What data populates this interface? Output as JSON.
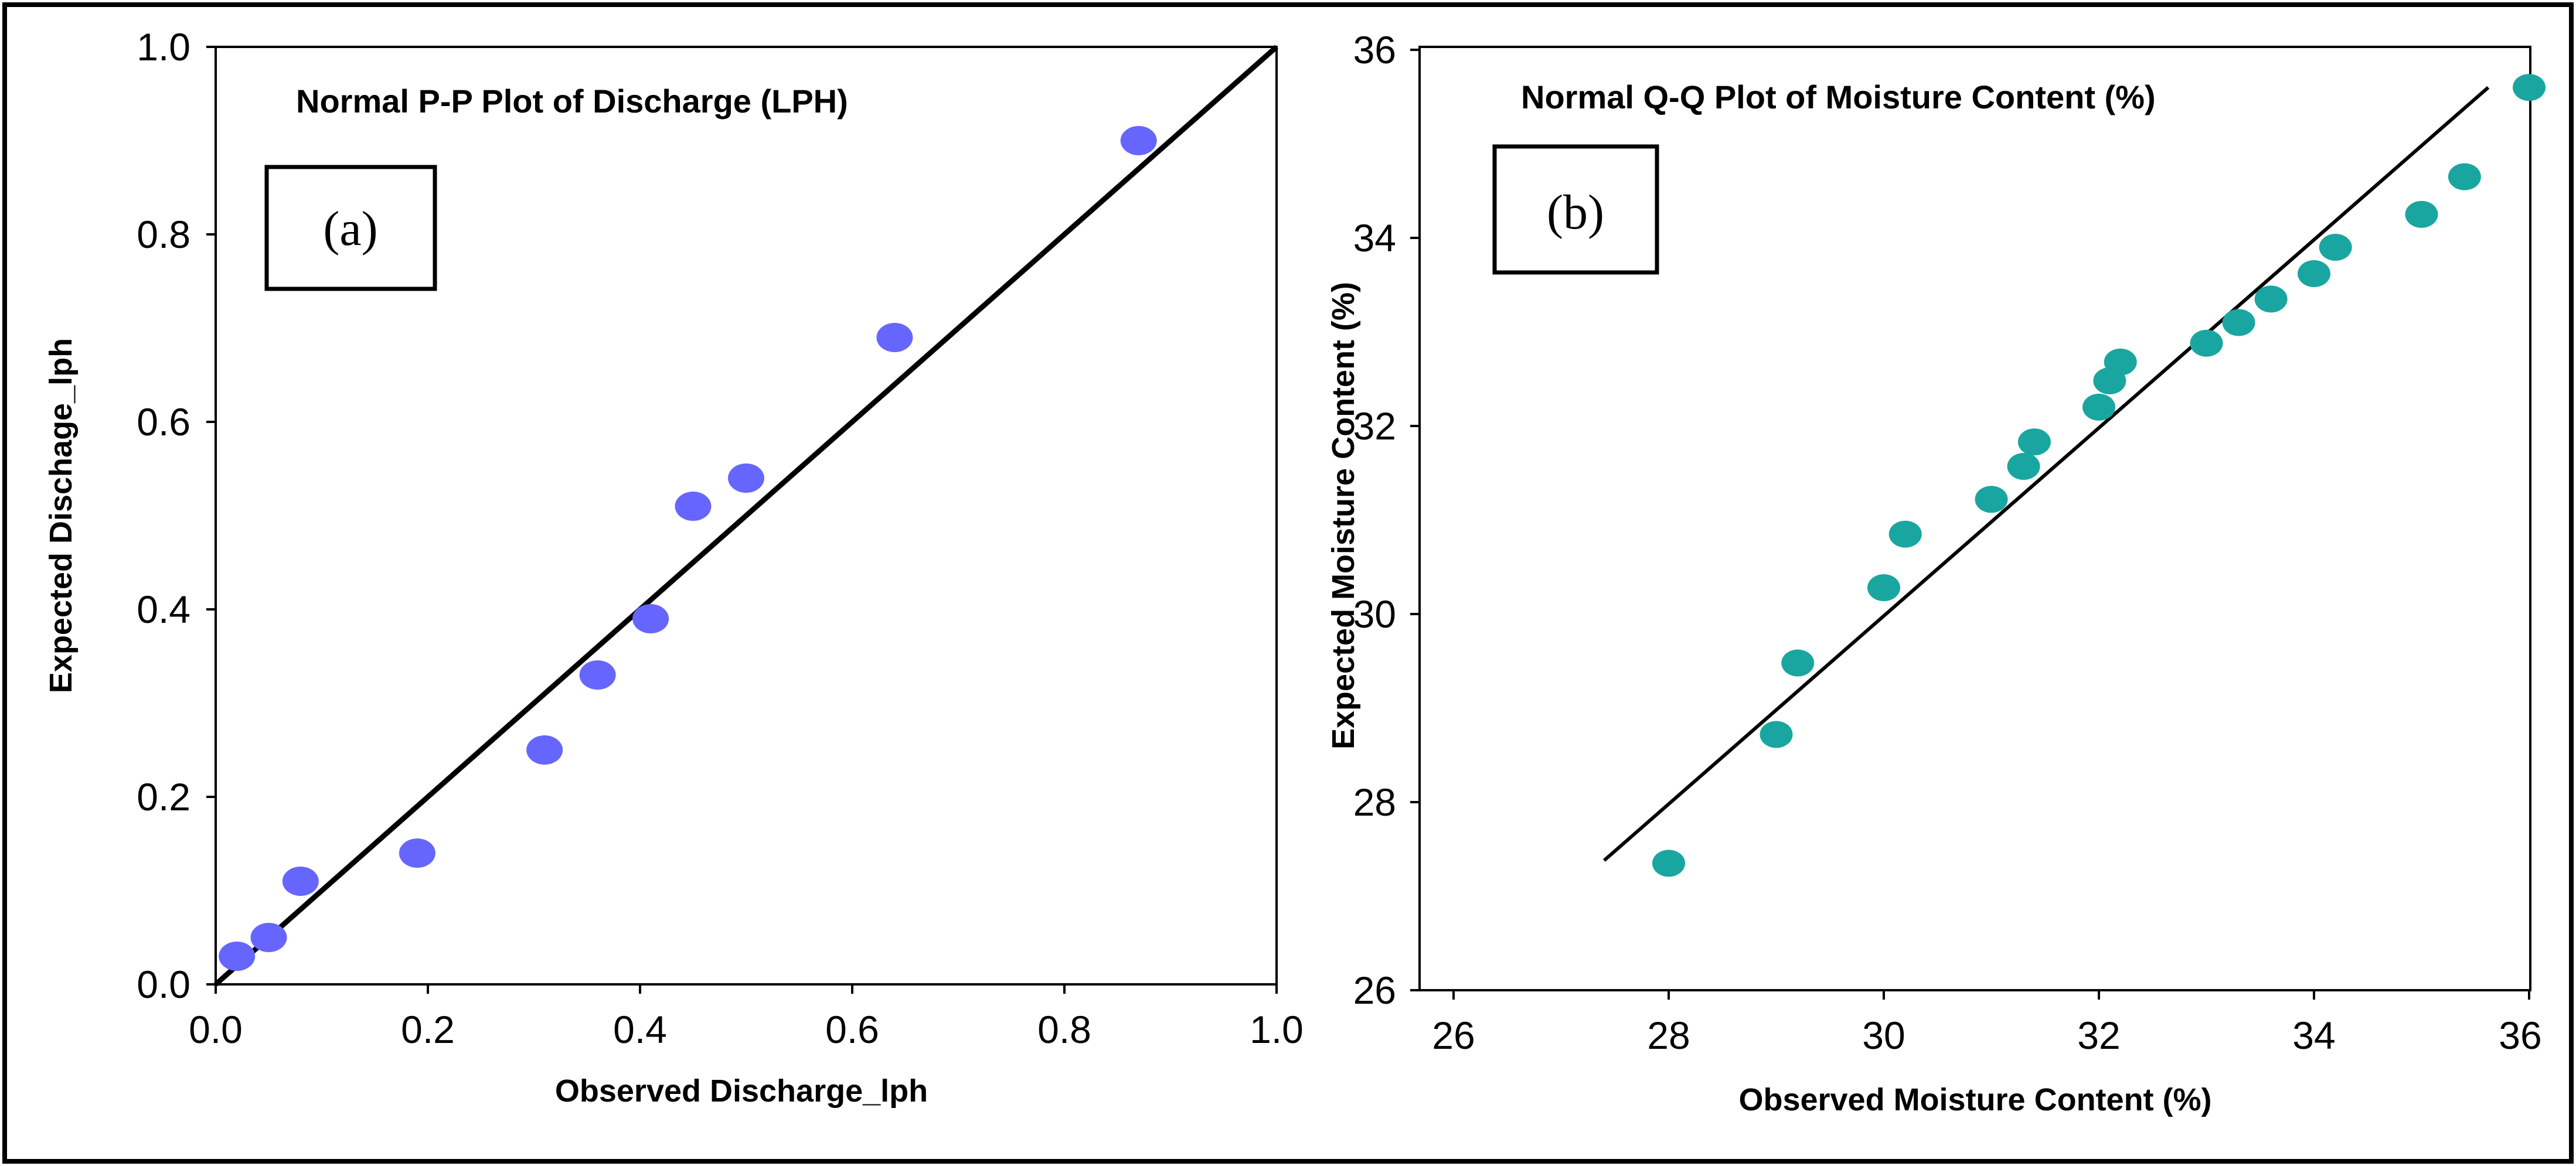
{
  "chart_data": [
    {
      "type": "scatter",
      "panel_label": "(a)",
      "title": "Normal P-P Plot of Discharge (LPH)",
      "xlabel": "Observed Discharge_lph",
      "ylabel": "Expected Dischage_lph",
      "xlim": [
        0.0,
        1.0
      ],
      "ylim": [
        0.0,
        1.0
      ],
      "xticks": [
        "0.0",
        "0.2",
        "0.4",
        "0.6",
        "0.8",
        "1.0"
      ],
      "yticks": [
        "0.0",
        "0.2",
        "0.4",
        "0.6",
        "0.8",
        "1.0"
      ],
      "points": [
        {
          "x": 0.02,
          "y": 0.03
        },
        {
          "x": 0.05,
          "y": 0.05
        },
        {
          "x": 0.08,
          "y": 0.11
        },
        {
          "x": 0.19,
          "y": 0.14
        },
        {
          "x": 0.31,
          "y": 0.25
        },
        {
          "x": 0.36,
          "y": 0.33
        },
        {
          "x": 0.41,
          "y": 0.39
        },
        {
          "x": 0.45,
          "y": 0.51
        },
        {
          "x": 0.5,
          "y": 0.54
        },
        {
          "x": 0.64,
          "y": 0.69
        },
        {
          "x": 0.87,
          "y": 0.9
        }
      ],
      "reference_line": {
        "x1": 0.0,
        "y1": 0.0,
        "x2": 1.0,
        "y2": 1.0
      },
      "grid": false,
      "point_color": "#6666ff"
    },
    {
      "type": "scatter",
      "panel_label": "(b)",
      "title": "Normal Q-Q Plot of Moisture Content (%)",
      "xlabel": "Observed Moisture Content (%)",
      "ylabel": "Expected Moisture Content (%)",
      "xlim": [
        26,
        36
      ],
      "ylim": [
        26,
        36
      ],
      "xticks": [
        "26",
        "28",
        "30",
        "32",
        "34",
        "36"
      ],
      "yticks": [
        "26",
        "28",
        "30",
        "32",
        "34",
        "36"
      ],
      "points": [
        {
          "x": 28.0,
          "y": 27.35
        },
        {
          "x": 29.0,
          "y": 28.72
        },
        {
          "x": 29.2,
          "y": 29.48
        },
        {
          "x": 30.0,
          "y": 30.28
        },
        {
          "x": 30.2,
          "y": 30.85
        },
        {
          "x": 31.0,
          "y": 31.22
        },
        {
          "x": 31.3,
          "y": 31.57
        },
        {
          "x": 31.4,
          "y": 31.83
        },
        {
          "x": 32.0,
          "y": 32.2
        },
        {
          "x": 32.1,
          "y": 32.48
        },
        {
          "x": 32.2,
          "y": 32.68
        },
        {
          "x": 33.0,
          "y": 32.88
        },
        {
          "x": 33.3,
          "y": 33.1
        },
        {
          "x": 33.6,
          "y": 33.35
        },
        {
          "x": 34.0,
          "y": 33.62
        },
        {
          "x": 34.2,
          "y": 33.9
        },
        {
          "x": 35.0,
          "y": 34.25
        },
        {
          "x": 35.4,
          "y": 34.65
        },
        {
          "x": 36.0,
          "y": 35.6
        }
      ],
      "reference_line": {
        "x1": 27.4,
        "y1": 27.38,
        "x2": 35.62,
        "y2": 35.6
      },
      "grid": false,
      "point_color": "#1aa6a0"
    }
  ]
}
